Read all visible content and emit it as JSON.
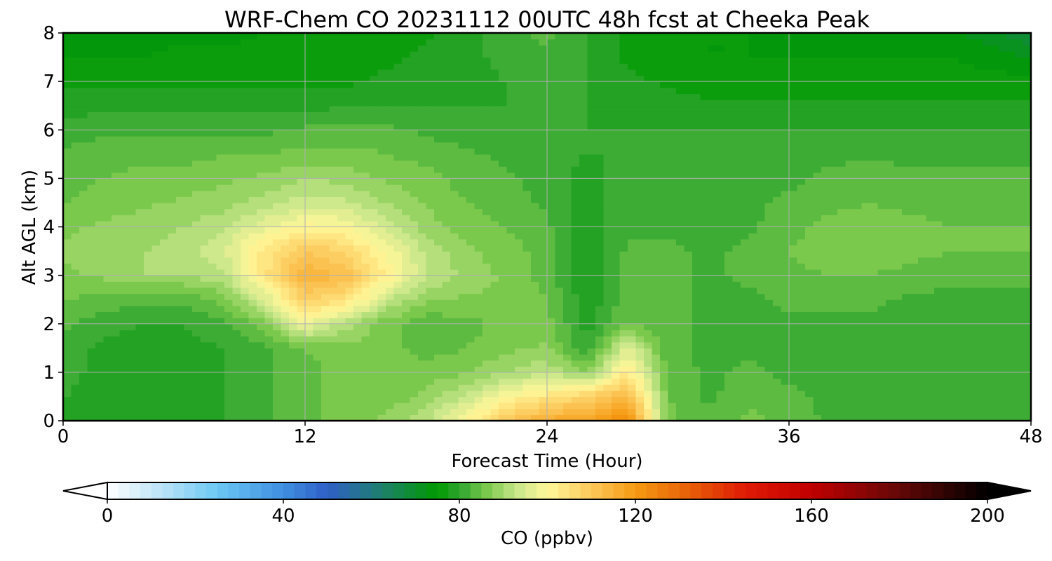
{
  "chart_data": {
    "type": "heatmap",
    "title": "WRF-Chem CO  20231112 00UTC 48h fcst at Cheeka Peak",
    "xlabel": "Forecast Time (Hour)",
    "ylabel": "Alt AGL (km)",
    "xlim": [
      0,
      48
    ],
    "ylim": [
      0,
      8
    ],
    "xticks": [
      0,
      12,
      24,
      36,
      48
    ],
    "yticks": [
      0,
      1,
      2,
      3,
      4,
      5,
      6,
      7,
      8
    ],
    "grid": true,
    "x": [
      0,
      2,
      4,
      6,
      8,
      10,
      12,
      14,
      16,
      18,
      20,
      22,
      24,
      26,
      28,
      30,
      32,
      34,
      36,
      38,
      40,
      42,
      44,
      46,
      48
    ],
    "y": [
      0,
      0.5,
      1,
      1.5,
      2,
      2.5,
      3,
      3.5,
      4,
      4.5,
      5,
      5.5,
      6,
      6.5,
      7,
      7.5,
      8
    ],
    "z": [
      [
        80,
        79,
        79,
        79,
        80,
        82,
        84,
        86,
        88,
        92,
        100,
        110,
        116,
        118,
        123,
        86,
        83,
        86,
        84,
        82,
        82,
        81,
        81,
        82,
        82
      ],
      [
        80,
        79,
        79,
        79,
        80,
        82,
        84,
        86,
        86,
        88,
        93,
        100,
        104,
        108,
        114,
        85,
        82,
        84,
        83,
        82,
        82,
        81,
        81,
        82,
        82
      ],
      [
        81,
        79,
        79,
        79,
        80,
        82,
        84,
        86,
        86,
        86,
        87,
        90,
        92,
        88,
        103,
        84,
        82,
        83,
        82,
        82,
        82,
        81,
        81,
        81,
        82
      ],
      [
        82,
        79,
        79,
        79,
        80,
        82,
        85,
        87,
        86,
        84,
        85,
        87,
        88,
        80,
        96,
        83,
        82,
        82,
        82,
        82,
        82,
        81,
        81,
        81,
        81
      ],
      [
        83,
        81,
        80,
        80,
        82,
        86,
        98,
        91,
        86,
        83,
        84,
        86,
        86,
        79,
        85,
        83,
        82,
        82,
        82,
        82,
        82,
        82,
        81,
        81,
        82
      ],
      [
        85,
        84,
        83,
        83,
        86,
        95,
        108,
        105,
        93,
        88,
        87,
        87,
        85,
        78,
        84,
        83,
        82,
        82,
        83,
        83,
        83,
        82,
        82,
        82,
        82
      ],
      [
        87,
        88,
        90,
        90,
        92,
        104,
        115,
        112,
        102,
        93,
        89,
        87,
        84,
        78,
        83,
        83,
        82,
        83,
        84,
        85,
        85,
        84,
        83,
        83,
        83
      ],
      [
        88,
        89,
        90,
        91,
        95,
        104,
        110,
        107,
        100,
        92,
        88,
        86,
        84,
        78,
        83,
        83,
        82,
        83,
        85,
        87,
        87,
        86,
        85,
        85,
        85
      ],
      [
        87,
        88,
        89,
        90,
        92,
        97,
        101,
        100,
        94,
        89,
        86,
        85,
        83,
        78,
        82,
        82,
        82,
        82,
        84,
        86,
        87,
        86,
        85,
        85,
        85
      ],
      [
        85,
        86,
        87,
        88,
        89,
        91,
        94,
        93,
        90,
        87,
        85,
        84,
        82,
        79,
        82,
        82,
        81,
        82,
        83,
        84,
        85,
        84,
        84,
        84,
        84
      ],
      [
        84,
        85,
        86,
        86,
        87,
        88,
        90,
        89,
        87,
        86,
        84,
        83,
        81,
        79,
        81,
        81,
        81,
        81,
        82,
        83,
        84,
        83,
        83,
        83,
        83
      ],
      [
        83,
        84,
        84,
        84,
        85,
        85,
        86,
        86,
        85,
        84,
        83,
        82,
        81,
        80,
        80,
        80,
        80,
        81,
        81,
        82,
        82,
        82,
        82,
        82,
        82
      ],
      [
        81,
        82,
        82,
        82,
        82,
        82,
        83,
        83,
        83,
        82,
        81,
        81,
        80,
        80,
        80,
        80,
        80,
        80,
        80,
        80,
        80,
        80,
        80,
        80,
        80
      ],
      [
        79,
        79,
        79,
        79,
        79,
        79,
        79,
        80,
        80,
        80,
        80,
        80,
        80,
        80,
        79,
        79,
        78,
        78,
        78,
        78,
        78,
        78,
        78,
        78,
        78
      ],
      [
        77,
        77,
        77,
        77,
        77,
        77,
        77,
        77,
        78,
        79,
        79,
        80,
        81,
        80,
        78,
        77,
        76,
        76,
        76,
        76,
        76,
        76,
        76,
        76,
        76
      ],
      [
        75,
        75,
        75,
        76,
        76,
        76,
        76,
        76,
        77,
        78,
        79,
        81,
        82,
        80,
        77,
        76,
        75,
        75,
        75,
        75,
        75,
        75,
        75,
        74,
        72
      ],
      [
        74,
        74,
        74,
        74,
        74,
        75,
        75,
        75,
        76,
        77,
        79,
        82,
        83,
        80,
        77,
        76,
        75,
        75,
        74,
        74,
        74,
        74,
        73,
        71,
        68
      ]
    ],
    "colorbar": {
      "label": "CO  (ppbv)",
      "min": 0,
      "max": 200,
      "ticks": [
        0,
        40,
        80,
        120,
        160,
        200
      ],
      "extend": "both",
      "stops": [
        {
          "value": 0,
          "color": "#ffffff"
        },
        {
          "value": 10,
          "color": "#c8e8f8"
        },
        {
          "value": 25,
          "color": "#6cc8f4"
        },
        {
          "value": 40,
          "color": "#3f8fe0"
        },
        {
          "value": 50,
          "color": "#2f5fc8"
        },
        {
          "value": 62,
          "color": "#1f7f6f"
        },
        {
          "value": 75,
          "color": "#009a00"
        },
        {
          "value": 80,
          "color": "#2ea52e"
        },
        {
          "value": 86,
          "color": "#78c84a"
        },
        {
          "value": 93,
          "color": "#c8e68a"
        },
        {
          "value": 100,
          "color": "#fff89a"
        },
        {
          "value": 110,
          "color": "#fcc85a"
        },
        {
          "value": 120,
          "color": "#f59a12"
        },
        {
          "value": 132,
          "color": "#e86008"
        },
        {
          "value": 145,
          "color": "#e01a05"
        },
        {
          "value": 160,
          "color": "#c00000"
        },
        {
          "value": 178,
          "color": "#6e0808"
        },
        {
          "value": 200,
          "color": "#000000"
        }
      ]
    }
  }
}
